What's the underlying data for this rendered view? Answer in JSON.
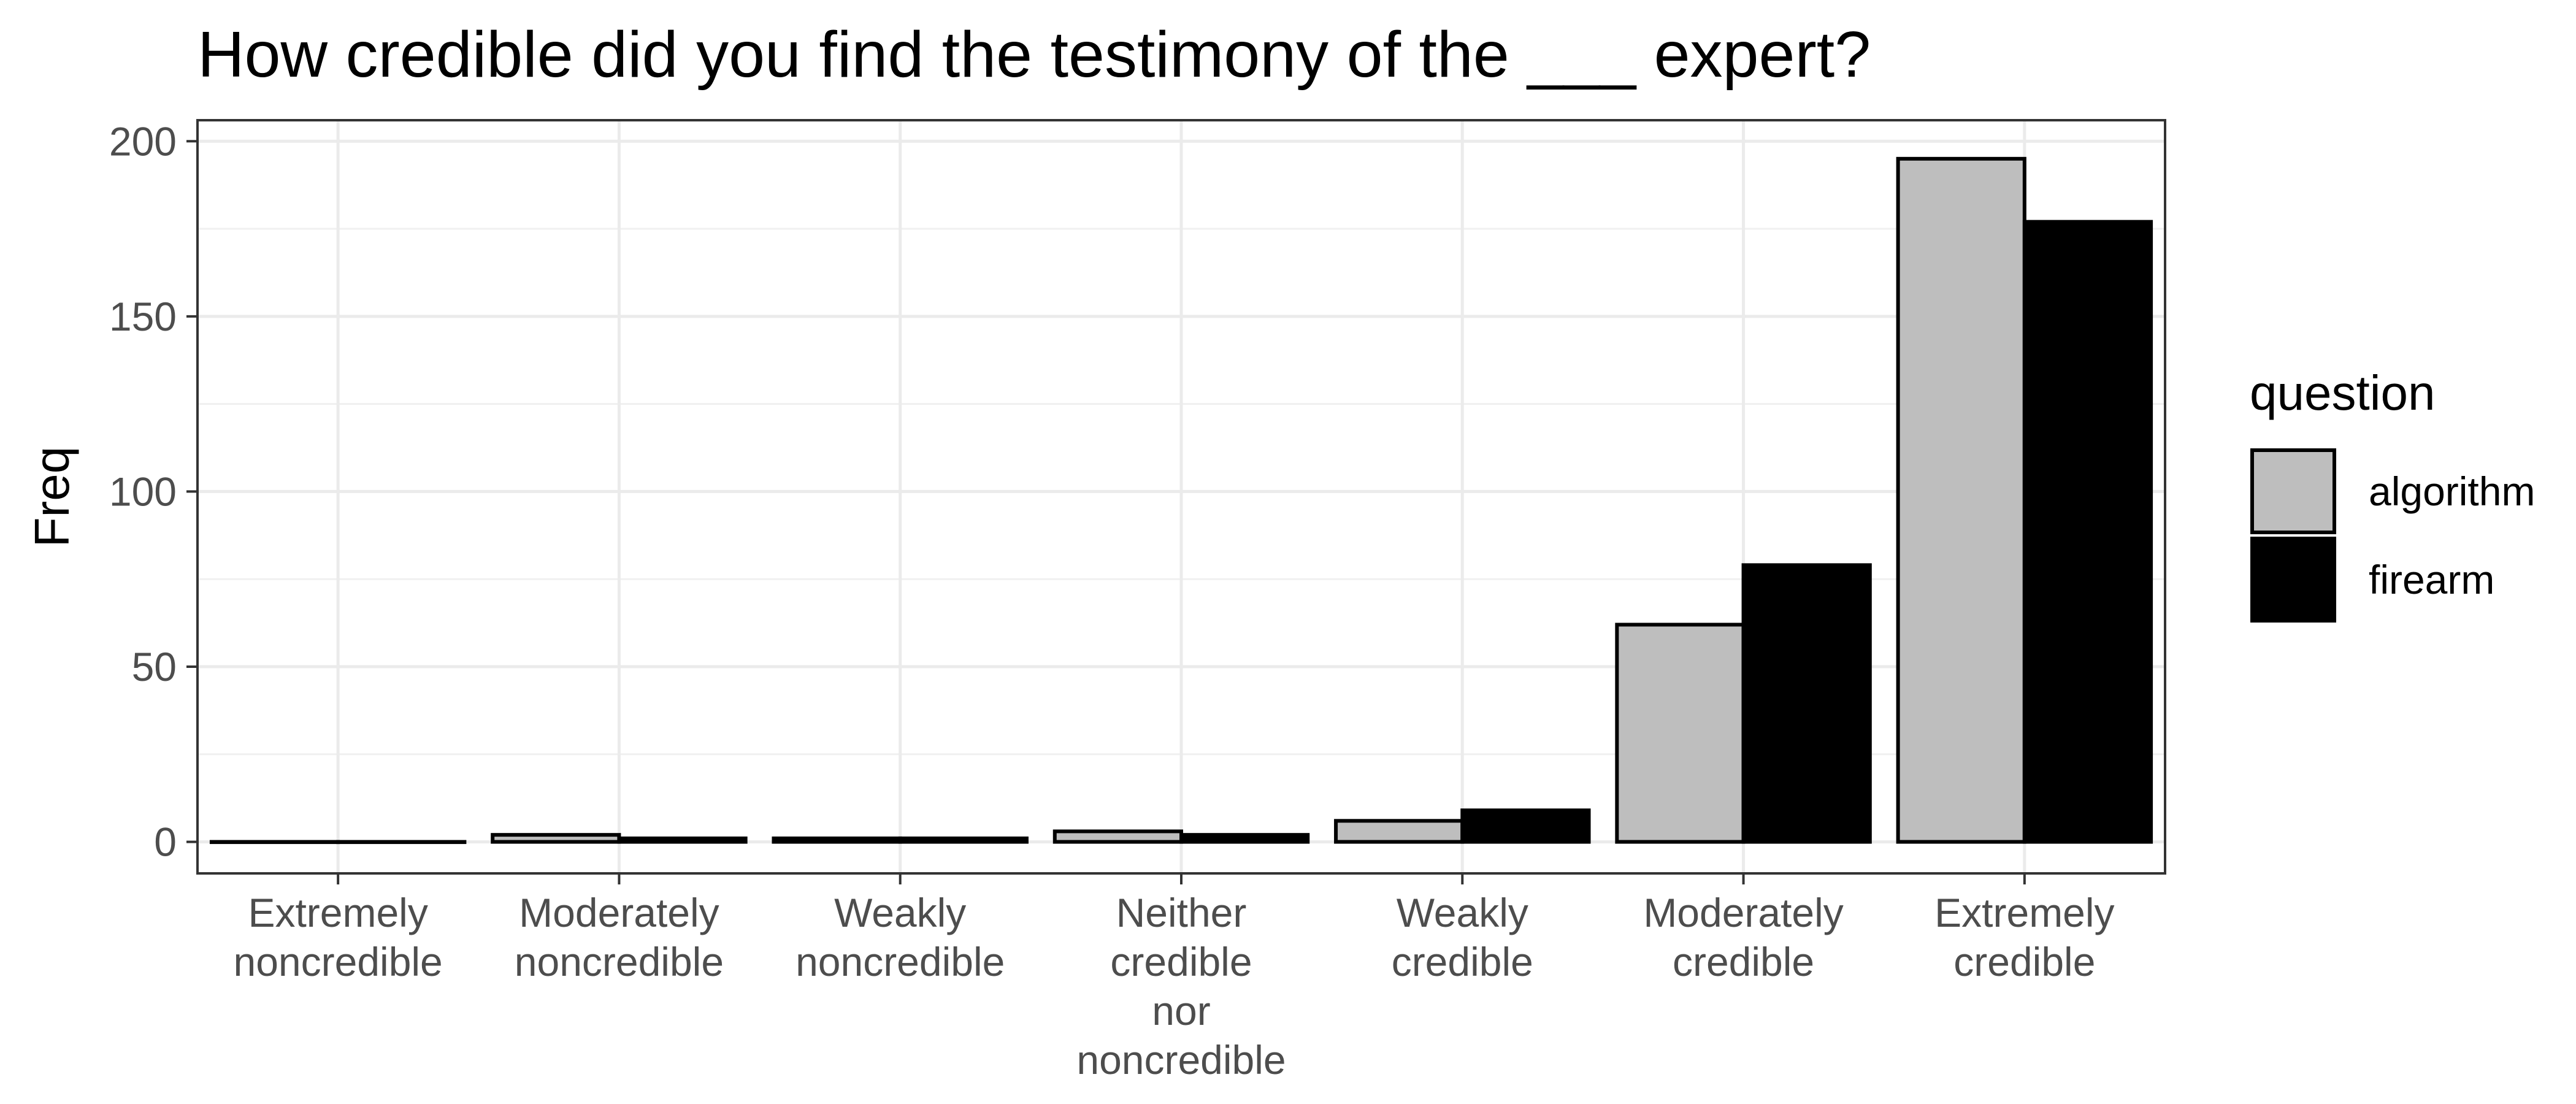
{
  "chart_data": {
    "type": "bar",
    "title": "How credible did you find the testimony of the ___ expert?",
    "xlabel": "",
    "ylabel": "Freq",
    "categories": [
      "Extremely noncredible",
      "Moderately noncredible",
      "Weakly noncredible",
      "Neither credible nor noncredible",
      "Weakly credible",
      "Moderately credible",
      "Extremely credible"
    ],
    "category_lines": [
      [
        "Extremely",
        "noncredible"
      ],
      [
        "Moderately",
        "noncredible"
      ],
      [
        "Weakly",
        "noncredible"
      ],
      [
        "Neither",
        "credible",
        "nor",
        "noncredible"
      ],
      [
        "Weakly",
        "credible"
      ],
      [
        "Moderately",
        "credible"
      ],
      [
        "Extremely",
        "credible"
      ]
    ],
    "series": [
      {
        "name": "algorithm",
        "color": "#bebebe",
        "values": [
          0,
          2,
          1,
          3,
          6,
          62,
          195
        ]
      },
      {
        "name": "firearm",
        "color": "#000000",
        "values": [
          0,
          1,
          1,
          2,
          9,
          79,
          177
        ]
      }
    ],
    "ylim": [
      -9,
      206
    ],
    "yticks": [
      0,
      50,
      100,
      150,
      200
    ],
    "grid": true,
    "legend": {
      "title": "question",
      "position": "right"
    }
  }
}
